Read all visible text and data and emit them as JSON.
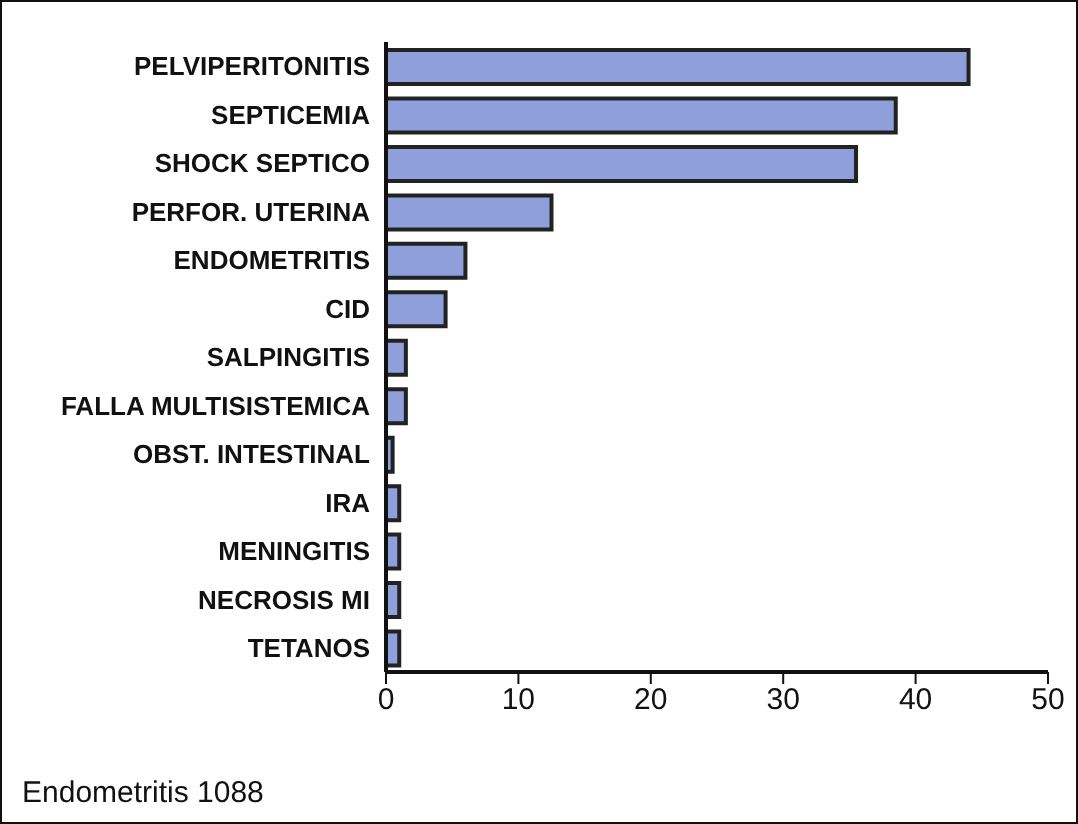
{
  "chart_data": {
    "type": "bar",
    "orientation": "horizontal",
    "categories": [
      "PELVIPERITONITIS",
      "SEPTICEMIA",
      "SHOCK SEPTICO",
      "PERFOR. UTERINA",
      "ENDOMETRITIS",
      "CID",
      "SALPINGITIS",
      "FALLA MULTISISTEMICA",
      "OBST. INTESTINAL",
      "IRA",
      "MENINGITIS",
      "NECROSIS MI",
      "TETANOS"
    ],
    "values": [
      44,
      38.5,
      35.5,
      12.5,
      6,
      4.5,
      1.5,
      1.5,
      0.5,
      1,
      1,
      1,
      1
    ],
    "color": "#8f9fdc",
    "xlim": [
      0,
      50
    ],
    "xticks": [
      0,
      10,
      20,
      30,
      40,
      50
    ],
    "grid": false,
    "annotations": [
      "Endometritis 1088"
    ]
  }
}
